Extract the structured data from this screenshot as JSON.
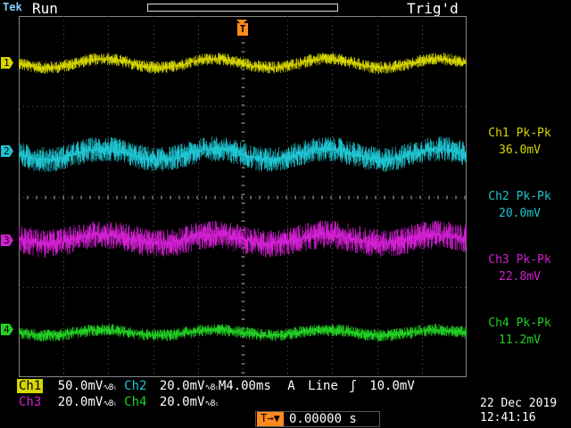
{
  "header": {
    "brand": "Tek",
    "state": "Run",
    "trigger_state": "Trig'd"
  },
  "trigger_marker": "T",
  "channels": [
    {
      "id": "1",
      "color": "#d6d600",
      "meas_label": "Ch1 Pk-Pk",
      "meas_value": "36.0mV"
    },
    {
      "id": "2",
      "color": "#1ec4d0",
      "meas_label": "Ch2 Pk-Pk",
      "meas_value": "20.0mV"
    },
    {
      "id": "3",
      "color": "#d21fd2",
      "meas_label": "Ch3 Pk-Pk",
      "meas_value": "22.8mV"
    },
    {
      "id": "4",
      "color": "#22d022",
      "meas_label": "Ch4 Pk-Pk",
      "meas_value": "11.2mV"
    }
  ],
  "status": {
    "ch1": {
      "label": "Ch1",
      "scale": "50.0mV"
    },
    "ch2": {
      "label": "Ch2",
      "scale": "20.0mV"
    },
    "ch3": {
      "label": "Ch3",
      "scale": "20.0mV"
    },
    "ch4": {
      "label": "Ch4",
      "scale": "20.0mV"
    },
    "bw_symbol": "∿Bₗ",
    "timebase": "M4.00ms",
    "trigger": {
      "mode": "A",
      "source": "Line",
      "slope": "ʃ",
      "level": "10.0mV"
    },
    "trigger_pos_label": "T→▼",
    "trigger_pos_value": "0.00000 s",
    "date": "22 Dec 2019",
    "time": "12:41:16"
  }
}
